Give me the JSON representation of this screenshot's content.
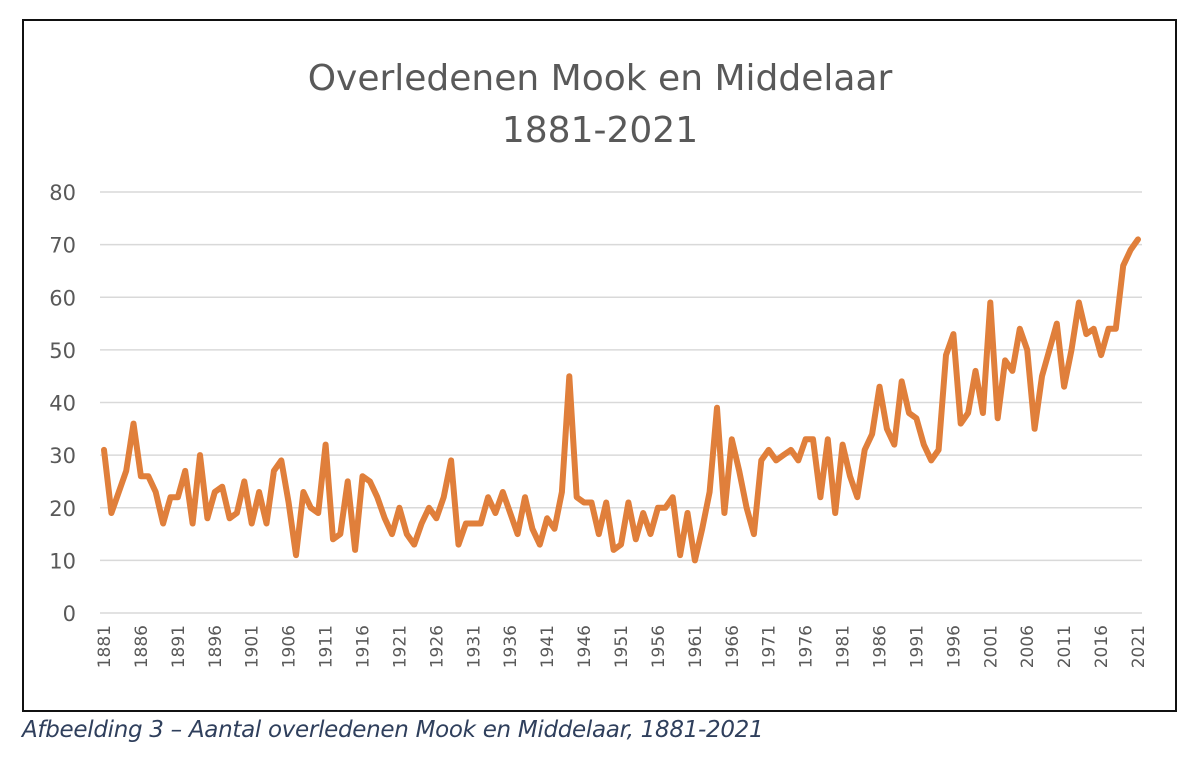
{
  "chart_data": {
    "type": "line",
    "title_line1": "Overledenen Mook en Middelaar",
    "title_line2": "1881-2021",
    "xlabel": "",
    "ylabel": "",
    "ylim": [
      0,
      80
    ],
    "y_ticks": [
      0,
      10,
      20,
      30,
      40,
      50,
      60,
      70,
      80
    ],
    "x_range": [
      1881,
      2021
    ],
    "x_tick_step": 5,
    "x_ticks": [
      "1881",
      "1886",
      "1891",
      "1896",
      "1901",
      "1906",
      "1911",
      "1916",
      "1921",
      "1926",
      "1931",
      "1936",
      "1941",
      "1946",
      "1951",
      "1956",
      "1961",
      "1966",
      "1971",
      "1976",
      "1981",
      "1986",
      "1991",
      "1996",
      "2001",
      "2006",
      "2011",
      "2016",
      "2021"
    ],
    "grid": true,
    "legend": "none",
    "line_color": "#e07f3b",
    "series": [
      {
        "name": "Overledenen",
        "start_year": 1881,
        "values": [
          31,
          19,
          23,
          27,
          36,
          26,
          26,
          23,
          17,
          22,
          22,
          27,
          17,
          30,
          18,
          23,
          24,
          18,
          19,
          25,
          17,
          23,
          17,
          27,
          29,
          21,
          11,
          23,
          20,
          19,
          32,
          14,
          15,
          25,
          12,
          26,
          25,
          22,
          18,
          15,
          20,
          15,
          13,
          17,
          20,
          18,
          22,
          29,
          13,
          17,
          17,
          17,
          22,
          19,
          23,
          19,
          15,
          22,
          16,
          13,
          18,
          16,
          23,
          45,
          22,
          21,
          21,
          15,
          21,
          12,
          13,
          21,
          14,
          19,
          15,
          20,
          20,
          22,
          11,
          19,
          10,
          16,
          23,
          39,
          19,
          33,
          27,
          20,
          15,
          29,
          31,
          29,
          30,
          31,
          29,
          33,
          33,
          22,
          33,
          19,
          32,
          26,
          22,
          31,
          34,
          43,
          35,
          32,
          44,
          38,
          37,
          32,
          29,
          31,
          49,
          53,
          36,
          38,
          46,
          38,
          59,
          37,
          48,
          46,
          54,
          50,
          35,
          45,
          50,
          55,
          43,
          50,
          59,
          53,
          54,
          49,
          54,
          54,
          66,
          69,
          71
        ]
      }
    ]
  },
  "caption": "Afbeelding 3 – Aantal overledenen Mook en Middelaar, 1881-2021"
}
